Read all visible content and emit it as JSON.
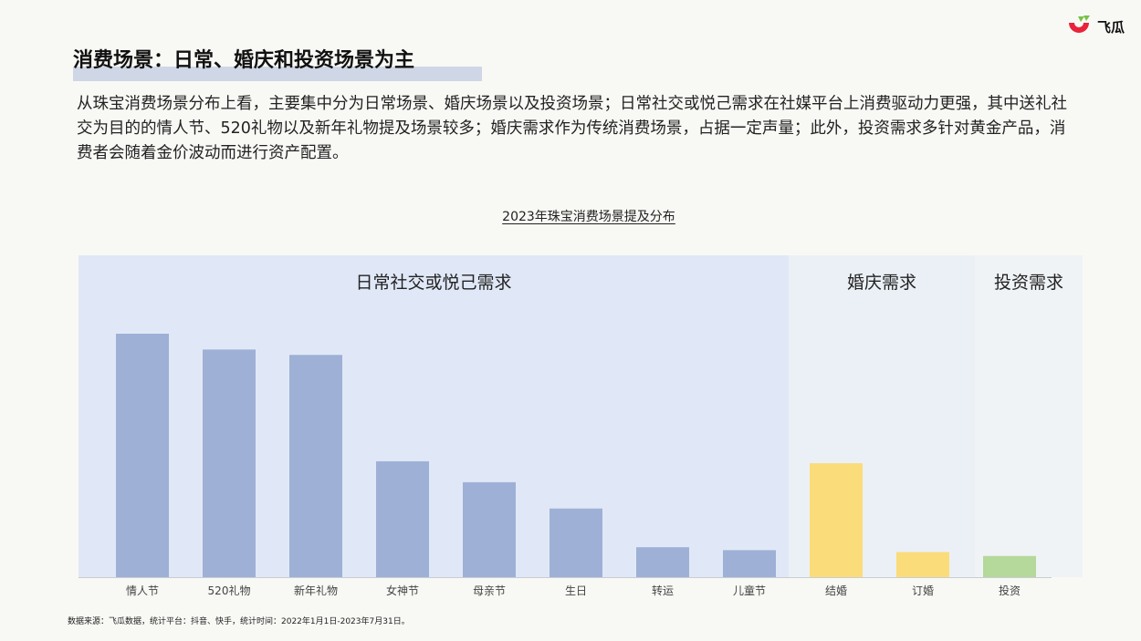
{
  "brand": {
    "name": "飞瓜"
  },
  "title": "消费场景：日常、婚庆和投资场景为主",
  "description": "从珠宝消费场景分布上看，主要集中分为日常场景、婚庆场景以及投资场景；日常社交或悦己需求在社媒平台上消费驱动力更强，其中送礼社交为目的的情人节、520礼物以及新年礼物提及场景较多；婚庆需求作为传统消费场景，占据一定声量；此外，投资需求多针对黄金产品，消费者会随着金价波动而进行资产配置。",
  "source": "数据来源：飞瓜数据，统计平台：抖音、快手，统计时间：2022年1月1日-2023年7月31日。",
  "chart_data": {
    "type": "bar",
    "title": "2023年珠宝消费场景提及分布",
    "categories": [
      "情人节",
      "520礼物",
      "新年礼物",
      "女神节",
      "母亲节",
      "生日",
      "转运",
      "儿童节",
      "结婚",
      "订婚",
      "投资"
    ],
    "values": [
      100,
      93.5,
      91.3,
      47.6,
      39,
      28.2,
      12.3,
      11.1,
      46.8,
      10.3,
      8.7
    ],
    "groups": [
      {
        "label": "日常社交或悦己需求",
        "start": 0,
        "end": 7,
        "bar_color": "#9eb0d5",
        "bg_color": "#e0e8f7"
      },
      {
        "label": "婚庆需求",
        "start": 8,
        "end": 9,
        "bar_color": "#fbdc7b",
        "bg_color": "#ebf0f6"
      },
      {
        "label": "投资需求",
        "start": 10,
        "end": 10,
        "bar_color": "#b5d89b",
        "bg_color": "#f0f3f6"
      }
    ],
    "ylim": [
      0,
      100
    ],
    "grid": false,
    "legend": "none"
  }
}
